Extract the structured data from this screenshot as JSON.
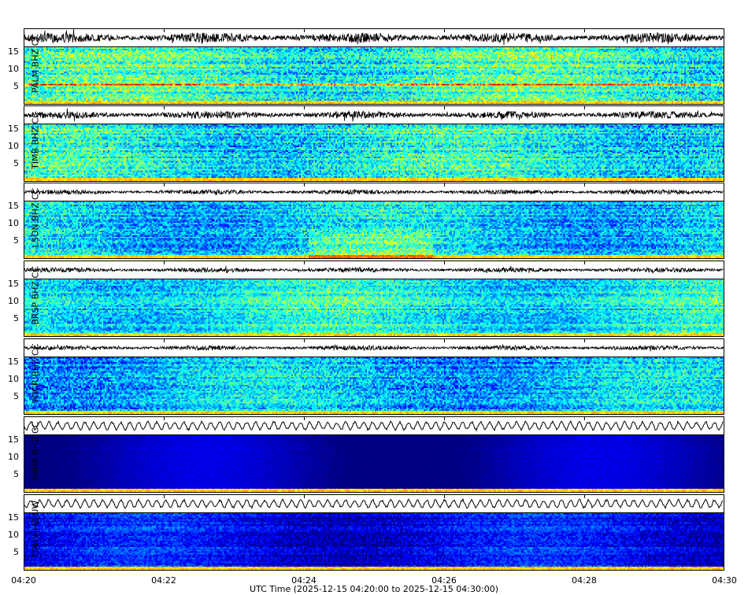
{
  "chart_data": {
    "type": "heatmap",
    "xlabel": "UTC Time (2025-12-15 04:20:00 to 2025-12-15 04:30:00)",
    "xticks": [
      "04:20",
      "04:22",
      "04:24",
      "04:26",
      "04:28",
      "04:30"
    ],
    "yticks": [
      "15",
      "10",
      "5"
    ],
    "ylim": [
      0,
      16
    ],
    "colormap": "jet",
    "panels": [
      {
        "label": "PALM BHZ CC",
        "base": 0.42,
        "var": 0.18
      },
      {
        "label": "TIMB BHZ CC",
        "base": 0.38,
        "var": 0.18
      },
      {
        "label": "LSON BHZ CC",
        "base": 0.33,
        "var": 0.16
      },
      {
        "label": "BRSP BHZ CC",
        "base": 0.38,
        "var": 0.15
      },
      {
        "label": "YOCR BHZ CC",
        "base": 0.3,
        "var": 0.16
      },
      {
        "label": "SHRK BHZ CC",
        "base": 0.04,
        "var": 0.02
      },
      {
        "label": "TDH HHZ UW",
        "base": 0.12,
        "var": 0.1
      }
    ]
  }
}
